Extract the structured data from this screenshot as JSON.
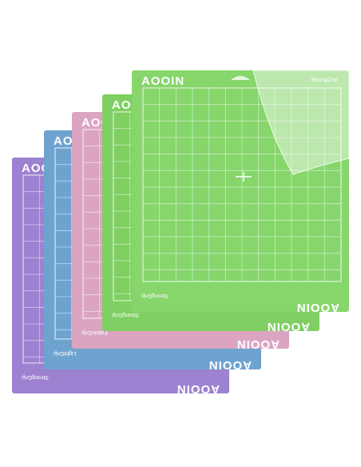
{
  "mats": [
    {
      "brand": "AOOIN",
      "grip": "StrongGrip",
      "color": "#9c82d0"
    },
    {
      "brand": "AOOIN",
      "grip": "LightGrip",
      "color": "#6fa3cf"
    },
    {
      "brand": "AOOIN",
      "grip": "FabricGrip",
      "color": "#dba5c2"
    },
    {
      "brand": "AOOIN",
      "grip": "StrongGrip",
      "color": "#7fcf63"
    },
    {
      "brand": "AOOIN",
      "grip": "StrongGrip",
      "color": "#86d66b"
    }
  ]
}
